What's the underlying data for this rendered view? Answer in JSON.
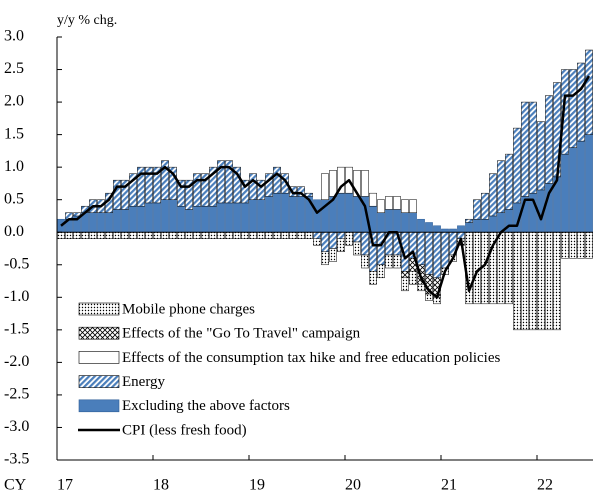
{
  "chart_data": {
    "type": "bar",
    "stacked": true,
    "y_label": "y/y % chg.",
    "x_label": "CY",
    "categories": [
      "17",
      null,
      null,
      null,
      null,
      null,
      null,
      null,
      null,
      null,
      null,
      null,
      "18",
      null,
      null,
      null,
      null,
      null,
      null,
      null,
      null,
      null,
      null,
      null,
      "19",
      null,
      null,
      null,
      null,
      null,
      null,
      null,
      null,
      null,
      null,
      null,
      "20",
      null,
      null,
      null,
      null,
      null,
      null,
      null,
      null,
      null,
      null,
      null,
      "21",
      null,
      null,
      null,
      null,
      null,
      null,
      null,
      null,
      null,
      null,
      null,
      "22",
      null,
      null,
      null,
      null,
      null,
      null
    ],
    "ylim": [
      -3.5,
      3.0
    ],
    "yticks": [
      {
        "value": 3.0,
        "label": "3.0"
      },
      2.5,
      {
        "value": 2.0,
        "label": "2.0"
      },
      1.5,
      {
        "value": 1.0,
        "label": "1.0"
      },
      0.5,
      {
        "value": 0,
        "label": "0.0"
      },
      -0.5,
      {
        "value": -1.0,
        "label": "-1.0"
      },
      -1.5,
      {
        "value": -2.0,
        "label": "-2.0"
      },
      -2.5,
      {
        "value": -3.0,
        "label": "-3.0"
      },
      -3.5
    ],
    "grid": false,
    "series": [
      {
        "name": "Mobile phone charges",
        "type": "bar",
        "pattern": "dots",
        "color": "#000000",
        "values": [
          -0.1,
          -0.1,
          -0.1,
          -0.1,
          -0.1,
          -0.1,
          -0.1,
          -0.1,
          -0.1,
          -0.1,
          -0.1,
          -0.1,
          -0.1,
          -0.1,
          -0.1,
          -0.1,
          -0.1,
          -0.1,
          -0.1,
          -0.1,
          -0.1,
          -0.1,
          -0.1,
          -0.1,
          -0.1,
          -0.1,
          -0.1,
          -0.1,
          -0.1,
          -0.1,
          -0.1,
          -0.1,
          -0.1,
          -0.2,
          -0.2,
          -0.2,
          -0.2,
          -0.2,
          -0.2,
          -0.2,
          -0.2,
          -0.2,
          -0.2,
          -0.2,
          -0.2,
          -0.1,
          -0.1,
          -0.1,
          -0.1,
          -0.1,
          -0.1,
          -1.1,
          -1.1,
          -1.1,
          -1.1,
          -1.1,
          -1.1,
          -1.5,
          -1.5,
          -1.5,
          -1.5,
          -1.5,
          -1.5,
          -0.4,
          -0.4,
          -0.4,
          -0.4
        ]
      },
      {
        "name": "Effects of the \"Go To Travel\" campaign",
        "type": "bar",
        "pattern": "crosshatch",
        "color": "#000000",
        "values": [
          0,
          0,
          0,
          0,
          0,
          0,
          0,
          0,
          0,
          0,
          0,
          0,
          0,
          0,
          0,
          0,
          0,
          0,
          0,
          0,
          0,
          0,
          0,
          0,
          0,
          0,
          0,
          0,
          0,
          0,
          0,
          0,
          0,
          0,
          0,
          0,
          0,
          0,
          0,
          0,
          0,
          0,
          0,
          -0.1,
          -0.2,
          -0.3,
          -0.3,
          -0.3,
          0,
          0,
          0,
          0,
          0,
          0,
          0,
          0,
          0,
          0,
          0,
          0,
          0,
          0,
          0,
          0,
          0,
          0,
          0
        ]
      },
      {
        "name": "Effects of the consumption tax hike and free education policies",
        "type": "bar",
        "pattern": "none",
        "color": "#ffffff",
        "values": [
          0,
          0,
          0,
          0,
          0,
          0,
          0,
          0,
          0,
          0,
          0,
          0,
          0,
          0,
          0,
          0,
          0,
          0,
          0,
          0,
          0,
          0,
          0,
          0,
          0,
          0,
          0,
          0,
          0,
          0,
          0,
          0,
          0,
          0.4,
          0.4,
          0.4,
          0.4,
          0.4,
          0.4,
          0.2,
          0.2,
          0.2,
          0.2,
          0.2,
          0.2,
          0,
          0,
          0,
          0,
          0,
          0,
          0,
          0,
          0,
          0,
          0,
          0,
          0,
          0,
          0,
          0,
          0,
          0,
          0,
          0,
          0,
          0
        ]
      },
      {
        "name": "Energy",
        "type": "bar",
        "pattern": "stripes",
        "color": "#4a7ebb",
        "values": [
          0,
          0.1,
          0.05,
          0.1,
          0.2,
          0.2,
          0.3,
          0.45,
          0.45,
          0.5,
          0.6,
          0.55,
          0.55,
          0.6,
          0.5,
          0.4,
          0.45,
          0.5,
          0.5,
          0.6,
          0.65,
          0.65,
          0.55,
          0.35,
          0.4,
          0.3,
          0.35,
          0.4,
          0.3,
          0.15,
          0.15,
          0.05,
          -0.1,
          -0.3,
          -0.25,
          -0.1,
          0,
          -0.15,
          -0.35,
          -0.6,
          -0.5,
          -0.35,
          -0.35,
          -0.6,
          -0.4,
          -0.5,
          -0.65,
          -0.7,
          -0.55,
          -0.35,
          -0.1,
          0.05,
          0.3,
          0.4,
          0.65,
          0.8,
          0.85,
          1.15,
          1.45,
          1.4,
          1.05,
          1.35,
          1.45,
          1.3,
          1.2,
          1.2,
          1.3
        ]
      },
      {
        "name": "Excluding the above factors",
        "type": "bar",
        "pattern": "solid",
        "color": "#4a7ebb",
        "values": [
          0.2,
          0.2,
          0.25,
          0.3,
          0.3,
          0.3,
          0.3,
          0.35,
          0.35,
          0.4,
          0.4,
          0.45,
          0.45,
          0.5,
          0.5,
          0.4,
          0.35,
          0.4,
          0.4,
          0.4,
          0.45,
          0.45,
          0.45,
          0.45,
          0.5,
          0.5,
          0.55,
          0.6,
          0.6,
          0.55,
          0.55,
          0.55,
          0.5,
          0.5,
          0.55,
          0.6,
          0.6,
          0.55,
          0.55,
          0.4,
          0.3,
          0.35,
          0.35,
          0.3,
          0.3,
          0.2,
          0.15,
          0.1,
          0.05,
          0.05,
          0.1,
          0.15,
          0.2,
          0.2,
          0.25,
          0.3,
          0.35,
          0.45,
          0.55,
          0.6,
          0.65,
          0.75,
          0.85,
          1.2,
          1.3,
          1.4,
          1.5
        ]
      },
      {
        "name": "CPI (less fresh food)",
        "type": "line",
        "color": "#000000",
        "values": [
          0.1,
          0.2,
          0.2,
          0.3,
          0.4,
          0.4,
          0.5,
          0.7,
          0.7,
          0.8,
          0.9,
          0.9,
          0.9,
          1.0,
          0.9,
          0.7,
          0.7,
          0.8,
          0.8,
          0.9,
          1.0,
          1.0,
          0.9,
          0.7,
          0.8,
          0.7,
          0.8,
          0.9,
          0.8,
          0.6,
          0.6,
          0.5,
          0.3,
          0.4,
          0.5,
          0.7,
          0.8,
          0.6,
          0.4,
          -0.2,
          -0.2,
          0.0,
          0.0,
          -0.4,
          -0.3,
          -0.7,
          -0.9,
          -1.0,
          -0.6,
          -0.4,
          -0.1,
          -0.9,
          -0.6,
          -0.5,
          -0.2,
          0.0,
          0.1,
          0.1,
          0.5,
          0.5,
          0.2,
          0.6,
          0.8,
          2.1,
          2.1,
          2.2,
          2.4
        ]
      }
    ]
  }
}
